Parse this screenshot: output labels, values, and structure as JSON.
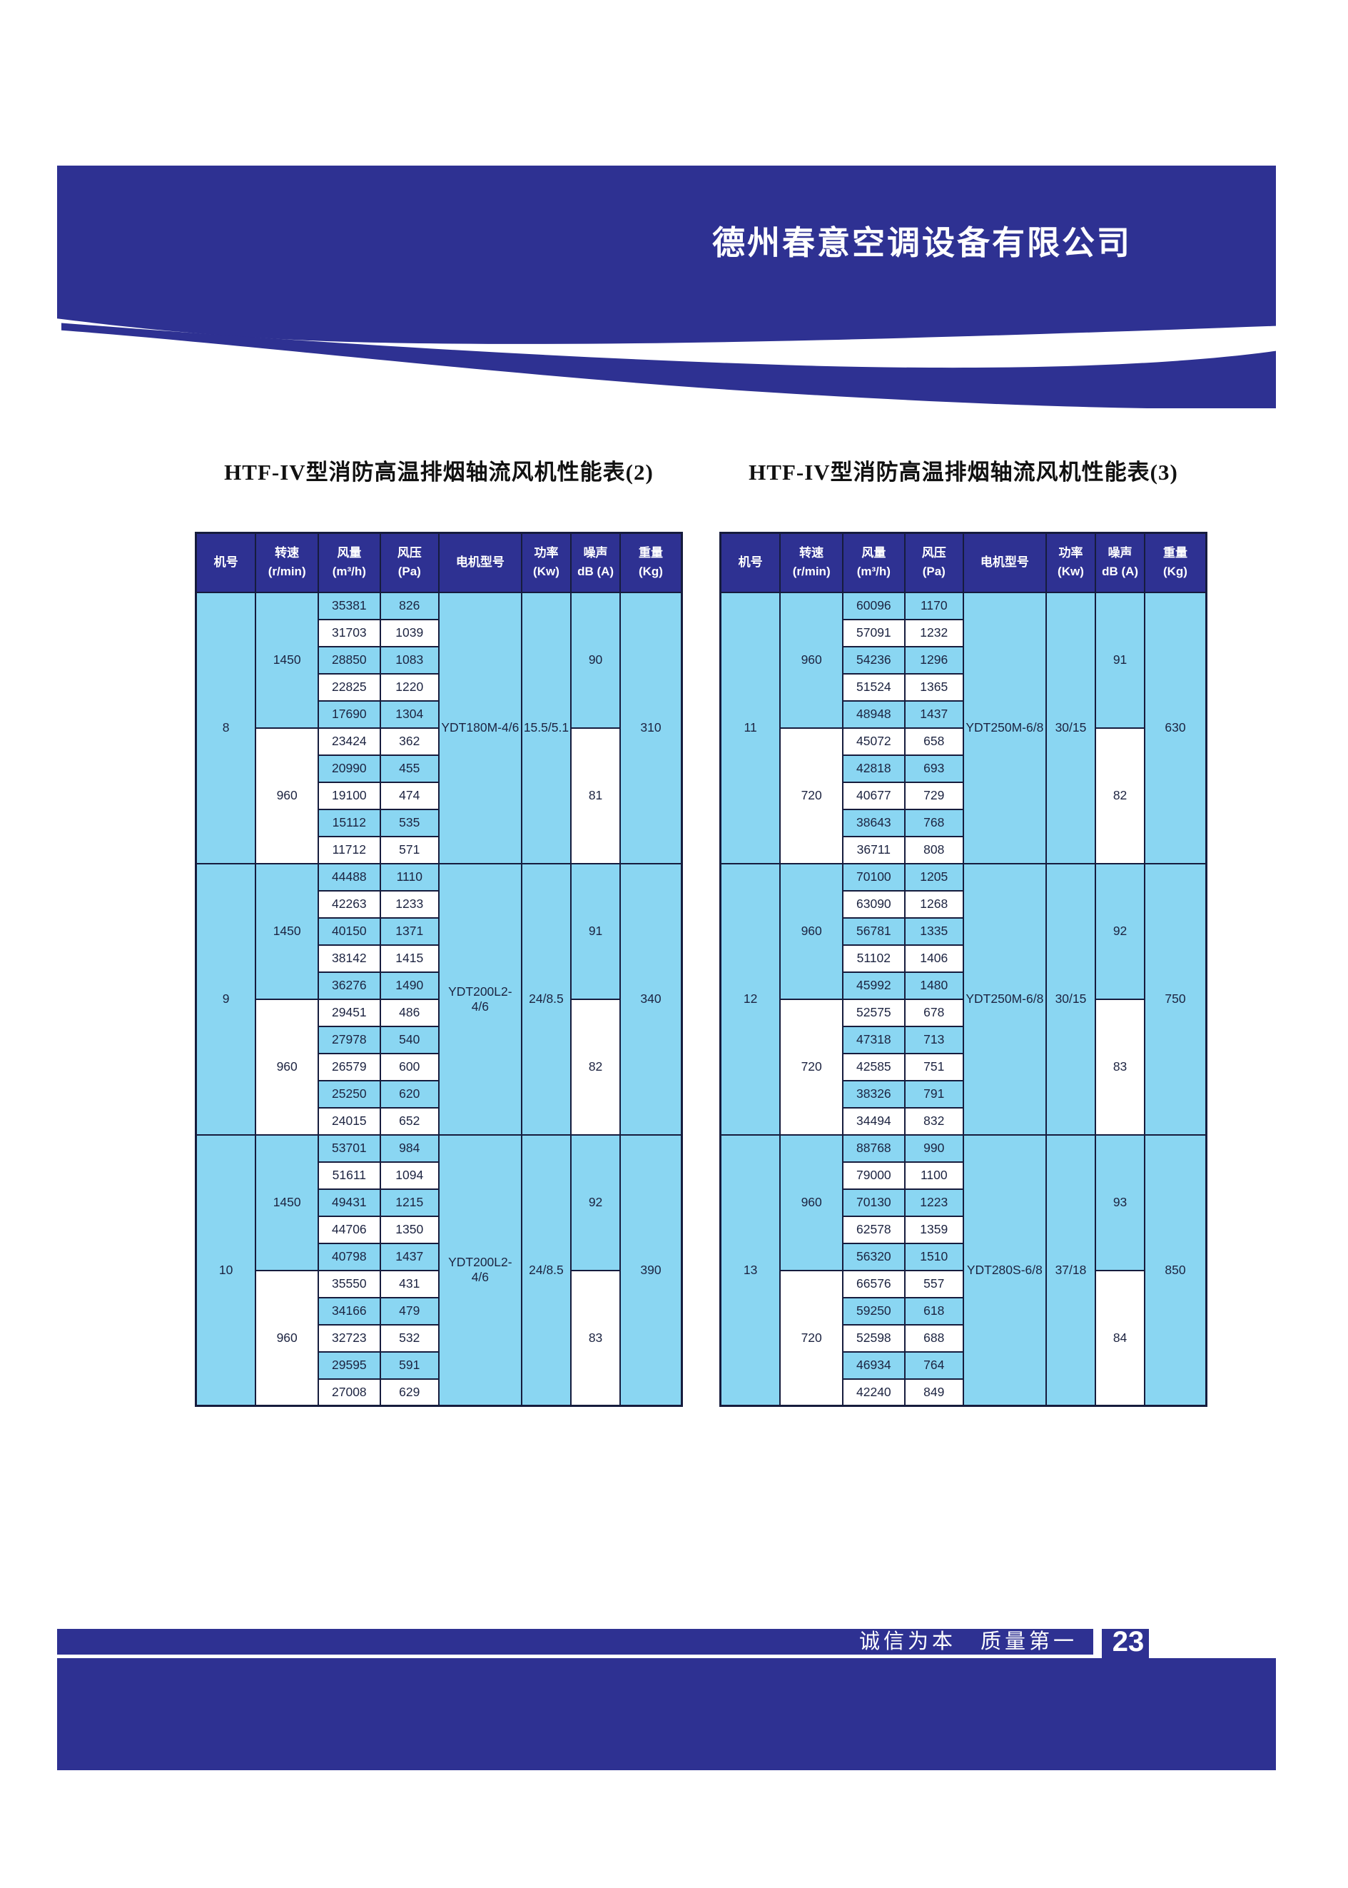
{
  "header": {
    "company": "德州春意空调设备有限公司"
  },
  "tables": [
    {
      "title": "HTF-IV型消防高温排烟轴流风机性能表(2)",
      "columns": [
        {
          "l1": "机号",
          "l2": ""
        },
        {
          "l1": "转速(r/min)",
          "l2": ""
        },
        {
          "l1": "风量",
          "l2": "(m³/h)"
        },
        {
          "l1": "风压",
          "l2": "(Pa)"
        },
        {
          "l1": "电机型号",
          "l2": ""
        },
        {
          "l1": "功率",
          "l2": "(Kw)"
        },
        {
          "l1": "噪声",
          "l2": "dB (A)"
        },
        {
          "l1": "重量",
          "l2": "(Kg)"
        }
      ],
      "machines": [
        {
          "no": "8",
          "motor": "YDT180M-4/6",
          "power": "15.5/5.1",
          "weight": "310",
          "groups": [
            {
              "speed": "1450",
              "noise": "90",
              "rows": [
                [
                  "35381",
                  "826"
                ],
                [
                  "31703",
                  "1039"
                ],
                [
                  "28850",
                  "1083"
                ],
                [
                  "22825",
                  "1220"
                ],
                [
                  "17690",
                  "1304"
                ]
              ]
            },
            {
              "speed": "960",
              "noise": "81",
              "rows": [
                [
                  "23424",
                  "362"
                ],
                [
                  "20990",
                  "455"
                ],
                [
                  "19100",
                  "474"
                ],
                [
                  "15112",
                  "535"
                ],
                [
                  "11712",
                  "571"
                ]
              ]
            }
          ]
        },
        {
          "no": "9",
          "motor": "YDT200L2-4/6",
          "power": "24/8.5",
          "weight": "340",
          "groups": [
            {
              "speed": "1450",
              "noise": "91",
              "rows": [
                [
                  "44488",
                  "1110"
                ],
                [
                  "42263",
                  "1233"
                ],
                [
                  "40150",
                  "1371"
                ],
                [
                  "38142",
                  "1415"
                ],
                [
                  "36276",
                  "1490"
                ]
              ]
            },
            {
              "speed": "960",
              "noise": "82",
              "rows": [
                [
                  "29451",
                  "486"
                ],
                [
                  "27978",
                  "540"
                ],
                [
                  "26579",
                  "600"
                ],
                [
                  "25250",
                  "620"
                ],
                [
                  "24015",
                  "652"
                ]
              ]
            }
          ]
        },
        {
          "no": "10",
          "motor": "YDT200L2-4/6",
          "power": "24/8.5",
          "weight": "390",
          "groups": [
            {
              "speed": "1450",
              "noise": "92",
              "rows": [
                [
                  "53701",
                  "984"
                ],
                [
                  "51611",
                  "1094"
                ],
                [
                  "49431",
                  "1215"
                ],
                [
                  "44706",
                  "1350"
                ],
                [
                  "40798",
                  "1437"
                ]
              ]
            },
            {
              "speed": "960",
              "noise": "83",
              "rows": [
                [
                  "35550",
                  "431"
                ],
                [
                  "34166",
                  "479"
                ],
                [
                  "32723",
                  "532"
                ],
                [
                  "29595",
                  "591"
                ],
                [
                  "27008",
                  "629"
                ]
              ]
            }
          ]
        }
      ]
    },
    {
      "title": "HTF-IV型消防高温排烟轴流风机性能表(3)",
      "columns": [
        {
          "l1": "机号",
          "l2": ""
        },
        {
          "l1": "转速(r/min)",
          "l2": ""
        },
        {
          "l1": "风量",
          "l2": "(m³/h)"
        },
        {
          "l1": "风压",
          "l2": "(Pa)"
        },
        {
          "l1": "电机型号",
          "l2": ""
        },
        {
          "l1": "功率",
          "l2": "(Kw)"
        },
        {
          "l1": "噪声",
          "l2": "dB (A)"
        },
        {
          "l1": "重量",
          "l2": "(Kg)"
        }
      ],
      "machines": [
        {
          "no": "11",
          "motor": "YDT250M-6/8",
          "power": "30/15",
          "weight": "630",
          "groups": [
            {
              "speed": "960",
              "noise": "91",
              "rows": [
                [
                  "60096",
                  "1170"
                ],
                [
                  "57091",
                  "1232"
                ],
                [
                  "54236",
                  "1296"
                ],
                [
                  "51524",
                  "1365"
                ],
                [
                  "48948",
                  "1437"
                ]
              ]
            },
            {
              "speed": "720",
              "noise": "82",
              "rows": [
                [
                  "45072",
                  "658"
                ],
                [
                  "42818",
                  "693"
                ],
                [
                  "40677",
                  "729"
                ],
                [
                  "38643",
                  "768"
                ],
                [
                  "36711",
                  "808"
                ]
              ]
            }
          ]
        },
        {
          "no": "12",
          "motor": "YDT250M-6/8",
          "power": "30/15",
          "weight": "750",
          "groups": [
            {
              "speed": "960",
              "noise": "92",
              "rows": [
                [
                  "70100",
                  "1205"
                ],
                [
                  "63090",
                  "1268"
                ],
                [
                  "56781",
                  "1335"
                ],
                [
                  "51102",
                  "1406"
                ],
                [
                  "45992",
                  "1480"
                ]
              ]
            },
            {
              "speed": "720",
              "noise": "83",
              "rows": [
                [
                  "52575",
                  "678"
                ],
                [
                  "47318",
                  "713"
                ],
                [
                  "42585",
                  "751"
                ],
                [
                  "38326",
                  "791"
                ],
                [
                  "34494",
                  "832"
                ]
              ]
            }
          ]
        },
        {
          "no": "13",
          "motor": "YDT280S-6/8",
          "power": "37/18",
          "weight": "850",
          "groups": [
            {
              "speed": "960",
              "noise": "93",
              "rows": [
                [
                  "88768",
                  "990"
                ],
                [
                  "79000",
                  "1100"
                ],
                [
                  "70130",
                  "1223"
                ],
                [
                  "62578",
                  "1359"
                ],
                [
                  "56320",
                  "1510"
                ]
              ]
            },
            {
              "speed": "720",
              "noise": "84",
              "rows": [
                [
                  "66576",
                  "557"
                ],
                [
                  "59250",
                  "618"
                ],
                [
                  "52598",
                  "688"
                ],
                [
                  "46934",
                  "764"
                ],
                [
                  "42240",
                  "849"
                ]
              ]
            }
          ]
        }
      ]
    }
  ],
  "footer": {
    "slogan": "诚信为本　质量第一",
    "page_number": "23"
  },
  "colors": {
    "primary": "#2e3192",
    "light_blue": "#8ad6f2",
    "border": "#161c3d"
  }
}
